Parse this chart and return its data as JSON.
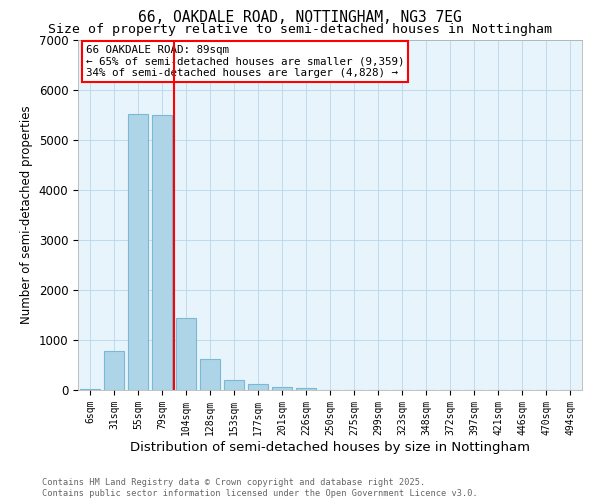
{
  "title1": "66, OAKDALE ROAD, NOTTINGHAM, NG3 7EG",
  "title2": "Size of property relative to semi-detached houses in Nottingham",
  "xlabel": "Distribution of semi-detached houses by size in Nottingham",
  "ylabel": "Number of semi-detached properties",
  "categories": [
    "6sqm",
    "31sqm",
    "55sqm",
    "79sqm",
    "104sqm",
    "128sqm",
    "153sqm",
    "177sqm",
    "201sqm",
    "226sqm",
    "250sqm",
    "275sqm",
    "299sqm",
    "323sqm",
    "348sqm",
    "372sqm",
    "397sqm",
    "421sqm",
    "446sqm",
    "470sqm",
    "494sqm"
  ],
  "values": [
    30,
    790,
    5530,
    5510,
    1450,
    620,
    210,
    120,
    70,
    40,
    10,
    0,
    0,
    0,
    0,
    0,
    0,
    0,
    0,
    0,
    0
  ],
  "bar_color": "#aed4e8",
  "bar_edgecolor": "#7ab8d4",
  "vline_color": "red",
  "vline_x_index": 3.5,
  "annotation_box_text": "66 OAKDALE ROAD: 89sqm\n← 65% of semi-detached houses are smaller (9,359)\n34% of semi-detached houses are larger (4,828) →",
  "footer_text": "Contains HM Land Registry data © Crown copyright and database right 2025.\nContains public sector information licensed under the Open Government Licence v3.0.",
  "ylim": [
    0,
    7000
  ],
  "bg_color": "#e8f4fb",
  "grid_color": "#b8d8ec",
  "title_fontsize": 10.5,
  "subtitle_fontsize": 9.5,
  "tick_fontsize": 7,
  "ylabel_fontsize": 8.5,
  "xlabel_fontsize": 9.5,
  "annotation_fontsize": 7.8,
  "footer_fontsize": 6.2
}
